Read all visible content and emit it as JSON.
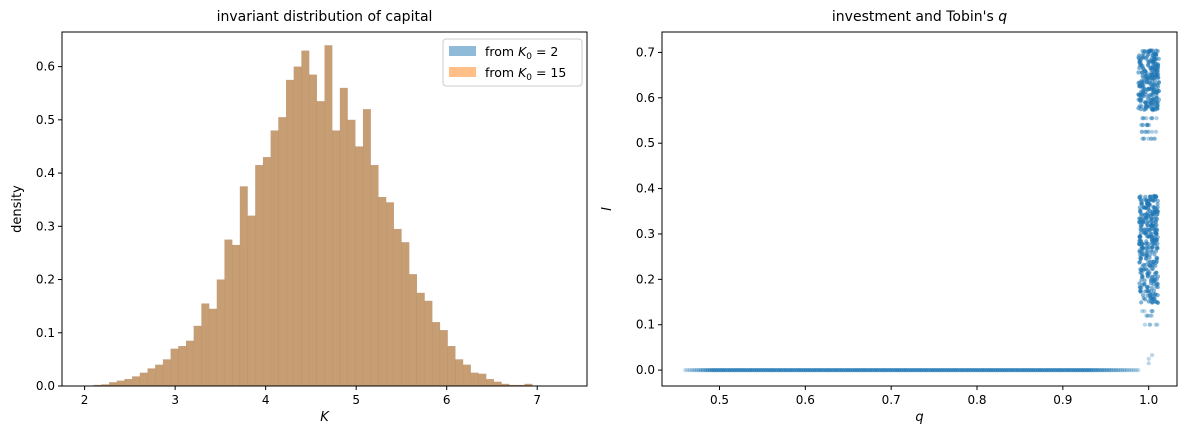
{
  "chart_data": [
    {
      "type": "histogram",
      "title": "invariant distribution of capital",
      "xlabel": "K",
      "ylabel": "density",
      "xlim": [
        1.75,
        7.55
      ],
      "ylim": [
        0,
        0.665
      ],
      "xticks": [
        2,
        3,
        4,
        5,
        6,
        7
      ],
      "yticks": [
        0.0,
        0.1,
        0.2,
        0.3,
        0.4,
        0.5,
        0.6
      ],
      "legend_position": "top-right",
      "series": [
        {
          "name": "from K0 = 2",
          "legend_base": "from ",
          "legend_var": "K",
          "legend_sub": "0",
          "legend_tail": " = 2",
          "color": "#1f77b4",
          "alpha": 0.5
        },
        {
          "name": "from K0 = 15",
          "legend_base": "from ",
          "legend_var": "K",
          "legend_sub": "0",
          "legend_tail": " = 15",
          "color": "#ff7f0e",
          "alpha": 0.5
        }
      ],
      "bin_start": 2.1,
      "bin_width": 0.085,
      "densities": [
        0.002,
        0.003,
        0.007,
        0.01,
        0.013,
        0.018,
        0.025,
        0.033,
        0.04,
        0.05,
        0.07,
        0.075,
        0.085,
        0.113,
        0.155,
        0.145,
        0.2,
        0.275,
        0.265,
        0.375,
        0.32,
        0.415,
        0.43,
        0.48,
        0.505,
        0.575,
        0.6,
        0.63,
        0.585,
        0.535,
        0.64,
        0.48,
        0.56,
        0.5,
        0.45,
        0.52,
        0.415,
        0.355,
        0.345,
        0.295,
        0.27,
        0.21,
        0.175,
        0.16,
        0.12,
        0.105,
        0.075,
        0.05,
        0.04,
        0.025,
        0.023,
        0.013,
        0.008,
        0.004,
        0.002,
        0.002,
        0.004,
        0.001
      ]
    },
    {
      "type": "scatter",
      "title": "investment and Tobin's q",
      "title_base": "investment and Tobin's ",
      "title_var": "q",
      "xlabel": "q",
      "ylabel": "I",
      "xlim": [
        0.433,
        1.033
      ],
      "ylim": [
        -0.035,
        0.745
      ],
      "xticks": [
        0.5,
        0.6,
        0.7,
        0.8,
        0.9,
        1.0
      ],
      "yticks": [
        0.0,
        0.1,
        0.2,
        0.3,
        0.4,
        0.5,
        0.6,
        0.7
      ],
      "color": "#1f77b4",
      "zero_band": {
        "q_from": 0.46,
        "q_to": 0.99,
        "I": 0.0
      },
      "upper_cluster": {
        "q_center": 1.0,
        "I_from": 0.575,
        "I_to": 0.705,
        "extremes": [
          0.555,
          0.54,
          0.525,
          0.51
        ]
      },
      "lower_cluster": {
        "q_center": 1.0,
        "I_from": 0.15,
        "I_to": 0.385,
        "extremes": [
          0.13,
          0.12,
          0.1
        ]
      },
      "isolated_points": [
        [
          1.0,
          0.025
        ],
        [
          1.004,
          0.033
        ],
        [
          1.0,
          0.015
        ]
      ]
    }
  ]
}
